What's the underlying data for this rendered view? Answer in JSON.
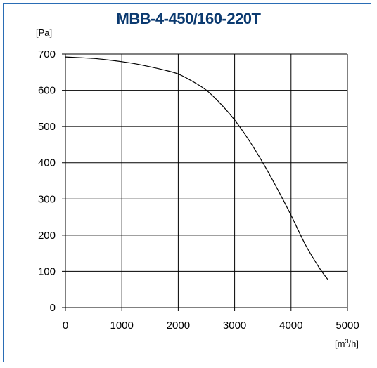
{
  "chart_data": {
    "type": "line",
    "title": "MBB-4-450/160-220T",
    "ylabel": "[Pa]",
    "xlabel": "[m3/h]",
    "xlabel_base": "[m",
    "xlabel_sup": "3",
    "xlabel_tail": "/h]",
    "xlim": [
      0,
      5000
    ],
    "ylim": [
      0,
      700
    ],
    "x_ticks": [
      0,
      1000,
      2000,
      3000,
      4000,
      5000
    ],
    "y_ticks": [
      0,
      100,
      200,
      300,
      400,
      500,
      600,
      700
    ],
    "grid": true,
    "series": [
      {
        "x": [
          0,
          250,
          500,
          750,
          1000,
          1250,
          1500,
          1750,
          2000,
          2250,
          2500,
          2750,
          3000,
          3250,
          3500,
          3750,
          4000,
          4250,
          4500,
          4650
        ],
        "y": [
          692,
          690,
          688,
          684,
          679,
          673,
          665,
          656,
          645,
          625,
          600,
          563,
          518,
          463,
          400,
          330,
          255,
          175,
          110,
          78
        ]
      }
    ],
    "colors": {
      "title": "#0b3a70",
      "frame": "#2a6db5",
      "line": "#000000"
    }
  }
}
